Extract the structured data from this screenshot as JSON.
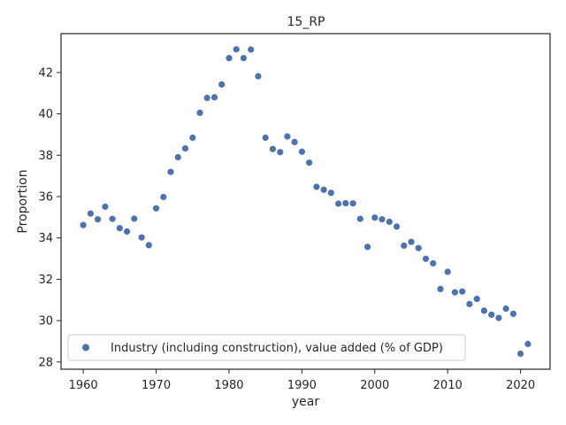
{
  "chart_data": {
    "type": "scatter",
    "title": "15_RP",
    "xlabel": "year",
    "ylabel": "Proportion",
    "xlim": [
      1956.95,
      2024.05
    ],
    "ylim": [
      27.65,
      43.88
    ],
    "xticks": [
      1960,
      1970,
      1980,
      1990,
      2000,
      2010,
      2020
    ],
    "yticks": [
      28,
      30,
      32,
      34,
      36,
      38,
      40,
      42
    ],
    "grid": false,
    "legend_position": "lower-left",
    "colors": {
      "series": "#4c72b0",
      "axis": "#262626",
      "legend_border": "#cccccc"
    },
    "series": [
      {
        "name": "Industry (including construction), value added (% of GDP)",
        "x": [
          1960,
          1961,
          1962,
          1963,
          1964,
          1965,
          1966,
          1967,
          1968,
          1969,
          1970,
          1971,
          1972,
          1973,
          1974,
          1975,
          1976,
          1977,
          1978,
          1979,
          1980,
          1981,
          1982,
          1983,
          1984,
          1985,
          1986,
          1987,
          1988,
          1989,
          1990,
          1991,
          1992,
          1993,
          1994,
          1995,
          1996,
          1997,
          1998,
          1999,
          2000,
          2001,
          2002,
          2003,
          2004,
          2005,
          2006,
          2007,
          2008,
          2009,
          2010,
          2011,
          2012,
          2013,
          2014,
          2015,
          2016,
          2017,
          2018,
          2019,
          2020,
          2021
        ],
        "y": [
          34.62,
          35.18,
          34.9,
          35.51,
          34.92,
          34.47,
          34.31,
          34.93,
          34.02,
          33.65,
          35.43,
          35.98,
          37.19,
          37.9,
          38.33,
          38.85,
          40.05,
          40.77,
          40.8,
          41.42,
          42.7,
          43.12,
          42.7,
          43.11,
          41.82,
          38.85,
          38.3,
          38.15,
          38.91,
          38.64,
          38.17,
          37.64,
          36.47,
          36.33,
          36.18,
          35.66,
          35.68,
          35.67,
          34.92,
          33.57,
          34.98,
          34.9,
          34.78,
          34.55,
          33.63,
          33.81,
          33.51,
          32.99,
          32.77,
          31.53,
          32.36,
          31.37,
          31.41,
          30.8,
          31.05,
          30.48,
          30.29,
          30.13,
          30.58,
          30.33,
          28.4,
          28.87
        ]
      }
    ]
  }
}
